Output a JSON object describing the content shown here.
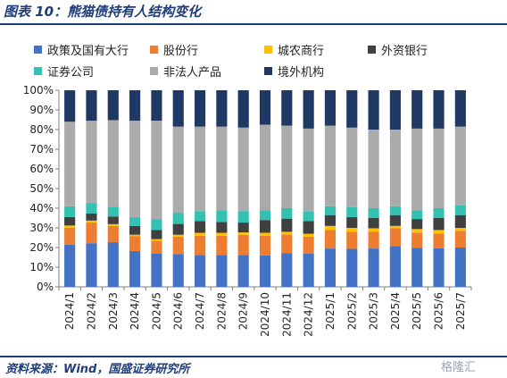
{
  "header": {
    "title": "图表 10：熊猫债持有人结构变化"
  },
  "footer": {
    "source": "资料来源：Wind，国盛证券研究所",
    "watermark": "格隆汇"
  },
  "chart_data": {
    "type": "bar",
    "stacked": true,
    "categories": [
      "2024/1",
      "2024/2",
      "2024/3",
      "2024/4",
      "2024/5",
      "2024/6",
      "2024/7",
      "2024/8",
      "2024/9",
      "2024/10",
      "2024/11",
      "2024/12",
      "2025/1",
      "2025/2",
      "2025/3",
      "2025/4",
      "2025/5",
      "2025/6",
      "2025/7"
    ],
    "series": [
      {
        "name": "政策及国有大行",
        "color": "#4472C4",
        "values": [
          21.5,
          22.2,
          22.7,
          18.2,
          17.0,
          16.7,
          16.2,
          16.2,
          16.2,
          16.0,
          17.2,
          17.0,
          19.5,
          19.3,
          19.5,
          20.8,
          19.8,
          19.6,
          20.0
        ]
      },
      {
        "name": "股份行",
        "color": "#ED7D31",
        "values": [
          8.5,
          10.5,
          8.2,
          7.5,
          6.5,
          8.8,
          9.8,
          9.8,
          10.3,
          10.0,
          9.5,
          8.5,
          9.5,
          8.7,
          8.6,
          9.0,
          7.8,
          7.5,
          8.5
        ]
      },
      {
        "name": "城农商行",
        "color": "#FFC000",
        "values": [
          1.2,
          1.0,
          1.0,
          0.8,
          0.8,
          1.0,
          1.5,
          1.5,
          1.2,
          1.5,
          1.3,
          1.5,
          2.0,
          2.0,
          1.7,
          1.2,
          1.8,
          1.8,
          1.5
        ]
      },
      {
        "name": "外资银行",
        "color": "#404040",
        "values": [
          4.3,
          3.6,
          3.9,
          4.5,
          4.7,
          5.5,
          6.0,
          5.5,
          5.0,
          6.5,
          6.7,
          6.5,
          5.5,
          5.5,
          5.2,
          5.5,
          5.1,
          6.1,
          6.5
        ]
      },
      {
        "name": "证券公司",
        "color": "#33C1B1",
        "values": [
          5.5,
          5.2,
          5.0,
          4.5,
          5.5,
          5.5,
          5.0,
          6.0,
          5.8,
          5.0,
          5.3,
          5.0,
          4.5,
          5.0,
          5.0,
          4.5,
          4.5,
          5.0,
          5.0
        ]
      },
      {
        "name": "非法人产品",
        "color": "#ABABAB",
        "values": [
          43.0,
          42.0,
          44.0,
          49.0,
          50.0,
          44.0,
          43.0,
          42.5,
          42.5,
          43.5,
          42.0,
          42.0,
          41.0,
          40.5,
          40.0,
          39.0,
          41.5,
          40.5,
          40.0
        ]
      },
      {
        "name": "境外机构",
        "color": "#203864",
        "values": [
          16.0,
          15.5,
          15.2,
          15.5,
          15.5,
          18.5,
          18.5,
          18.5,
          19.0,
          17.5,
          18.0,
          19.5,
          18.0,
          19.0,
          20.0,
          20.0,
          19.5,
          19.5,
          18.5
        ]
      }
    ],
    "ylim": [
      0,
      100
    ],
    "yticks": [
      "0%",
      "10%",
      "20%",
      "30%",
      "40%",
      "50%",
      "60%",
      "70%",
      "80%",
      "90%",
      "100%"
    ],
    "legend_position": "top",
    "grid": false
  }
}
